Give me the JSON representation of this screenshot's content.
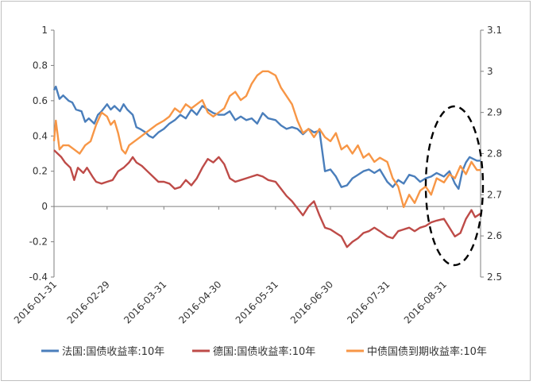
{
  "chart_data": {
    "type": "line",
    "x_tick_labels": [
      "2016-01-31",
      "2016-02-29",
      "2016-03-31",
      "2016-04-30",
      "2016-05-31",
      "2016-06-30",
      "2016-07-31",
      "2016-08-31"
    ],
    "x_range": [
      "2016-01-31",
      "2016-09-20"
    ],
    "y_left": {
      "range": [
        -0.4,
        1
      ],
      "ticks": [
        "1",
        "0.8",
        "0.6",
        "0.4",
        "0.2",
        "0",
        "-0.2",
        "-0.4"
      ]
    },
    "y_right": {
      "range": [
        2.5,
        3.1
      ],
      "ticks": [
        "3.1",
        "3",
        "2.9",
        "2.8",
        "2.7",
        "2.6",
        "2.5"
      ]
    },
    "legend_position": "bottom",
    "annotation": "dashed ellipse highlighting late August to mid September 2016",
    "series": [
      {
        "name": "法国:国债收益率:10年",
        "color": "#4a7ebb",
        "axis": "left",
        "points": [
          [
            "2016-01-31",
            0.66
          ],
          [
            "2016-02-01",
            0.68
          ],
          [
            "2016-02-03",
            0.61
          ],
          [
            "2016-02-05",
            0.63
          ],
          [
            "2016-02-08",
            0.6
          ],
          [
            "2016-02-10",
            0.59
          ],
          [
            "2016-02-12",
            0.55
          ],
          [
            "2016-02-15",
            0.54
          ],
          [
            "2016-02-17",
            0.48
          ],
          [
            "2016-02-19",
            0.5
          ],
          [
            "2016-02-22",
            0.47
          ],
          [
            "2016-02-24",
            0.52
          ],
          [
            "2016-02-26",
            0.54
          ],
          [
            "2016-02-29",
            0.58
          ],
          [
            "2016-03-02",
            0.55
          ],
          [
            "2016-03-04",
            0.57
          ],
          [
            "2016-03-07",
            0.54
          ],
          [
            "2016-03-09",
            0.58
          ],
          [
            "2016-03-11",
            0.55
          ],
          [
            "2016-03-14",
            0.52
          ],
          [
            "2016-03-16",
            0.45
          ],
          [
            "2016-03-18",
            0.44
          ],
          [
            "2016-03-21",
            0.42
          ],
          [
            "2016-03-23",
            0.4
          ],
          [
            "2016-03-25",
            0.39
          ],
          [
            "2016-03-28",
            0.42
          ],
          [
            "2016-03-31",
            0.44
          ],
          [
            "2016-04-03",
            0.47
          ],
          [
            "2016-04-06",
            0.49
          ],
          [
            "2016-04-09",
            0.52
          ],
          [
            "2016-04-12",
            0.5
          ],
          [
            "2016-04-15",
            0.55
          ],
          [
            "2016-04-18",
            0.52
          ],
          [
            "2016-04-21",
            0.57
          ],
          [
            "2016-04-24",
            0.55
          ],
          [
            "2016-04-27",
            0.53
          ],
          [
            "2016-04-30",
            0.52
          ],
          [
            "2016-05-03",
            0.52
          ],
          [
            "2016-05-06",
            0.54
          ],
          [
            "2016-05-09",
            0.49
          ],
          [
            "2016-05-12",
            0.51
          ],
          [
            "2016-05-15",
            0.49
          ],
          [
            "2016-05-18",
            0.5
          ],
          [
            "2016-05-21",
            0.47
          ],
          [
            "2016-05-24",
            0.53
          ],
          [
            "2016-05-27",
            0.5
          ],
          [
            "2016-05-31",
            0.49
          ],
          [
            "2016-06-03",
            0.46
          ],
          [
            "2016-06-06",
            0.44
          ],
          [
            "2016-06-09",
            0.45
          ],
          [
            "2016-06-12",
            0.44
          ],
          [
            "2016-06-15",
            0.41
          ],
          [
            "2016-06-18",
            0.44
          ],
          [
            "2016-06-21",
            0.42
          ],
          [
            "2016-06-24",
            0.43
          ],
          [
            "2016-06-27",
            0.2
          ],
          [
            "2016-06-30",
            0.21
          ],
          [
            "2016-07-03",
            0.17
          ],
          [
            "2016-07-06",
            0.11
          ],
          [
            "2016-07-09",
            0.12
          ],
          [
            "2016-07-12",
            0.16
          ],
          [
            "2016-07-15",
            0.18
          ],
          [
            "2016-07-18",
            0.2
          ],
          [
            "2016-07-21",
            0.21
          ],
          [
            "2016-07-24",
            0.19
          ],
          [
            "2016-07-27",
            0.21
          ],
          [
            "2016-07-31",
            0.14
          ],
          [
            "2016-08-03",
            0.11
          ],
          [
            "2016-08-06",
            0.15
          ],
          [
            "2016-08-09",
            0.13
          ],
          [
            "2016-08-12",
            0.18
          ],
          [
            "2016-08-15",
            0.17
          ],
          [
            "2016-08-18",
            0.14
          ],
          [
            "2016-08-21",
            0.16
          ],
          [
            "2016-08-24",
            0.17
          ],
          [
            "2016-08-27",
            0.19
          ],
          [
            "2016-08-31",
            0.17
          ],
          [
            "2016-09-03",
            0.2
          ],
          [
            "2016-09-06",
            0.13
          ],
          [
            "2016-09-08",
            0.1
          ],
          [
            "2016-09-10",
            0.2
          ],
          [
            "2016-09-12",
            0.25
          ],
          [
            "2016-09-14",
            0.28
          ],
          [
            "2016-09-16",
            0.27
          ],
          [
            "2016-09-18",
            0.26
          ],
          [
            "2016-09-20",
            0.26
          ]
        ]
      },
      {
        "name": "德国:国债收益率:10年",
        "color": "#be4b48",
        "axis": "left",
        "points": [
          [
            "2016-01-31",
            0.32
          ],
          [
            "2016-02-02",
            0.3
          ],
          [
            "2016-02-04",
            0.28
          ],
          [
            "2016-02-06",
            0.25
          ],
          [
            "2016-02-09",
            0.22
          ],
          [
            "2016-02-11",
            0.15
          ],
          [
            "2016-02-13",
            0.22
          ],
          [
            "2016-02-16",
            0.19
          ],
          [
            "2016-02-18",
            0.22
          ],
          [
            "2016-02-21",
            0.17
          ],
          [
            "2016-02-23",
            0.14
          ],
          [
            "2016-02-26",
            0.13
          ],
          [
            "2016-02-29",
            0.14
          ],
          [
            "2016-03-03",
            0.15
          ],
          [
            "2016-03-06",
            0.2
          ],
          [
            "2016-03-09",
            0.22
          ],
          [
            "2016-03-12",
            0.25
          ],
          [
            "2016-03-14",
            0.28
          ],
          [
            "2016-03-16",
            0.25
          ],
          [
            "2016-03-19",
            0.23
          ],
          [
            "2016-03-22",
            0.2
          ],
          [
            "2016-03-25",
            0.17
          ],
          [
            "2016-03-28",
            0.14
          ],
          [
            "2016-03-31",
            0.14
          ],
          [
            "2016-04-03",
            0.13
          ],
          [
            "2016-04-06",
            0.1
          ],
          [
            "2016-04-09",
            0.11
          ],
          [
            "2016-04-12",
            0.15
          ],
          [
            "2016-04-15",
            0.12
          ],
          [
            "2016-04-18",
            0.16
          ],
          [
            "2016-04-21",
            0.22
          ],
          [
            "2016-04-24",
            0.27
          ],
          [
            "2016-04-27",
            0.25
          ],
          [
            "2016-04-30",
            0.28
          ],
          [
            "2016-05-03",
            0.24
          ],
          [
            "2016-05-06",
            0.16
          ],
          [
            "2016-05-09",
            0.14
          ],
          [
            "2016-05-12",
            0.15
          ],
          [
            "2016-05-15",
            0.16
          ],
          [
            "2016-05-18",
            0.17
          ],
          [
            "2016-05-21",
            0.18
          ],
          [
            "2016-05-24",
            0.17
          ],
          [
            "2016-05-27",
            0.15
          ],
          [
            "2016-05-31",
            0.14
          ],
          [
            "2016-06-03",
            0.1
          ],
          [
            "2016-06-06",
            0.06
          ],
          [
            "2016-06-09",
            0.03
          ],
          [
            "2016-06-12",
            -0.01
          ],
          [
            "2016-06-15",
            -0.05
          ],
          [
            "2016-06-18",
            0.0
          ],
          [
            "2016-06-21",
            0.03
          ],
          [
            "2016-06-24",
            -0.05
          ],
          [
            "2016-06-27",
            -0.12
          ],
          [
            "2016-06-30",
            -0.13
          ],
          [
            "2016-07-03",
            -0.15
          ],
          [
            "2016-07-06",
            -0.17
          ],
          [
            "2016-07-09",
            -0.23
          ],
          [
            "2016-07-12",
            -0.2
          ],
          [
            "2016-07-15",
            -0.18
          ],
          [
            "2016-07-18",
            -0.15
          ],
          [
            "2016-07-21",
            -0.14
          ],
          [
            "2016-07-24",
            -0.12
          ],
          [
            "2016-07-27",
            -0.14
          ],
          [
            "2016-07-31",
            -0.17
          ],
          [
            "2016-08-03",
            -0.18
          ],
          [
            "2016-08-06",
            -0.14
          ],
          [
            "2016-08-09",
            -0.13
          ],
          [
            "2016-08-12",
            -0.12
          ],
          [
            "2016-08-15",
            -0.14
          ],
          [
            "2016-08-18",
            -0.12
          ],
          [
            "2016-08-21",
            -0.11
          ],
          [
            "2016-08-24",
            -0.09
          ],
          [
            "2016-08-27",
            -0.08
          ],
          [
            "2016-08-31",
            -0.07
          ],
          [
            "2016-09-03",
            -0.12
          ],
          [
            "2016-09-06",
            -0.17
          ],
          [
            "2016-09-09",
            -0.15
          ],
          [
            "2016-09-12",
            -0.07
          ],
          [
            "2016-09-15",
            -0.02
          ],
          [
            "2016-09-17",
            -0.06
          ],
          [
            "2016-09-20",
            -0.04
          ]
        ]
      },
      {
        "name": "中债国债到期收益率:10年",
        "color": "#f79646",
        "axis": "right",
        "points": [
          [
            "2016-01-31",
            2.83
          ],
          [
            "2016-02-01",
            2.88
          ],
          [
            "2016-02-03",
            2.81
          ],
          [
            "2016-02-05",
            2.82
          ],
          [
            "2016-02-08",
            2.82
          ],
          [
            "2016-02-11",
            2.81
          ],
          [
            "2016-02-14",
            2.8
          ],
          [
            "2016-02-17",
            2.82
          ],
          [
            "2016-02-20",
            2.83
          ],
          [
            "2016-02-23",
            2.87
          ],
          [
            "2016-02-26",
            2.9
          ],
          [
            "2016-02-29",
            2.89
          ],
          [
            "2016-03-02",
            2.87
          ],
          [
            "2016-03-04",
            2.88
          ],
          [
            "2016-03-06",
            2.85
          ],
          [
            "2016-03-08",
            2.81
          ],
          [
            "2016-03-10",
            2.8
          ],
          [
            "2016-03-12",
            2.82
          ],
          [
            "2016-03-15",
            2.83
          ],
          [
            "2016-03-18",
            2.84
          ],
          [
            "2016-03-21",
            2.85
          ],
          [
            "2016-03-24",
            2.86
          ],
          [
            "2016-03-27",
            2.87
          ],
          [
            "2016-03-31",
            2.88
          ],
          [
            "2016-04-03",
            2.89
          ],
          [
            "2016-04-06",
            2.91
          ],
          [
            "2016-04-09",
            2.9
          ],
          [
            "2016-04-12",
            2.92
          ],
          [
            "2016-04-15",
            2.91
          ],
          [
            "2016-04-18",
            2.92
          ],
          [
            "2016-04-21",
            2.93
          ],
          [
            "2016-04-24",
            2.9
          ],
          [
            "2016-04-27",
            2.89
          ],
          [
            "2016-04-30",
            2.9
          ],
          [
            "2016-05-03",
            2.91
          ],
          [
            "2016-05-06",
            2.94
          ],
          [
            "2016-05-09",
            2.95
          ],
          [
            "2016-05-12",
            2.93
          ],
          [
            "2016-05-15",
            2.94
          ],
          [
            "2016-05-18",
            2.97
          ],
          [
            "2016-05-21",
            2.99
          ],
          [
            "2016-05-24",
            3.0
          ],
          [
            "2016-05-27",
            3.0
          ],
          [
            "2016-05-31",
            2.99
          ],
          [
            "2016-06-03",
            2.96
          ],
          [
            "2016-06-06",
            2.94
          ],
          [
            "2016-06-09",
            2.92
          ],
          [
            "2016-06-12",
            2.88
          ],
          [
            "2016-06-15",
            2.85
          ],
          [
            "2016-06-18",
            2.86
          ],
          [
            "2016-06-21",
            2.84
          ],
          [
            "2016-06-24",
            2.86
          ],
          [
            "2016-06-27",
            2.84
          ],
          [
            "2016-06-30",
            2.83
          ],
          [
            "2016-07-03",
            2.85
          ],
          [
            "2016-07-06",
            2.81
          ],
          [
            "2016-07-09",
            2.82
          ],
          [
            "2016-07-12",
            2.8
          ],
          [
            "2016-07-15",
            2.82
          ],
          [
            "2016-07-18",
            2.79
          ],
          [
            "2016-07-21",
            2.8
          ],
          [
            "2016-07-24",
            2.78
          ],
          [
            "2016-07-27",
            2.79
          ],
          [
            "2016-07-31",
            2.78
          ],
          [
            "2016-08-03",
            2.74
          ],
          [
            "2016-08-06",
            2.72
          ],
          [
            "2016-08-09",
            2.67
          ],
          [
            "2016-08-12",
            2.7
          ],
          [
            "2016-08-15",
            2.68
          ],
          [
            "2016-08-18",
            2.71
          ],
          [
            "2016-08-21",
            2.72
          ],
          [
            "2016-08-24",
            2.7
          ],
          [
            "2016-08-27",
            2.74
          ],
          [
            "2016-08-31",
            2.73
          ],
          [
            "2016-09-03",
            2.75
          ],
          [
            "2016-09-06",
            2.74
          ],
          [
            "2016-09-09",
            2.77
          ],
          [
            "2016-09-12",
            2.75
          ],
          [
            "2016-09-15",
            2.78
          ],
          [
            "2016-09-18",
            2.76
          ],
          [
            "2016-09-20",
            2.76
          ]
        ]
      }
    ]
  }
}
